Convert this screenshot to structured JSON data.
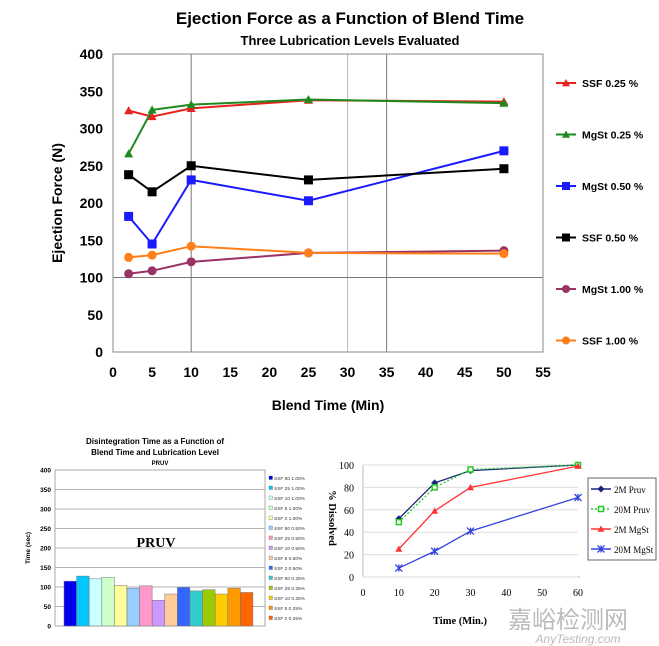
{
  "chart_data": [
    {
      "type": "line",
      "title": "Ejection Force as a Function of Blend Time",
      "subtitle": "Three Lubrication Levels Evaluated",
      "xlabel": "Blend Time (Min)",
      "ylabel": "Ejection Force (N)",
      "xlim": [
        0,
        55
      ],
      "ylim": [
        0,
        400
      ],
      "xticks": [
        0,
        5,
        10,
        15,
        20,
        25,
        30,
        35,
        40,
        45,
        50,
        55
      ],
      "yticks": [
        0,
        50,
        100,
        150,
        200,
        250,
        300,
        350,
        400
      ],
      "x": [
        2,
        5,
        10,
        25,
        50
      ],
      "legend": "right",
      "series": [
        {
          "name": "SSF 0.25 %",
          "color": "#e8231f",
          "marker": "triangle",
          "values": [
            324,
            316,
            327,
            338,
            336
          ]
        },
        {
          "name": "MgSt 0.25 %",
          "color": "#1e8a1e",
          "marker": "triangle",
          "values": [
            266,
            325,
            332,
            339,
            334
          ]
        },
        {
          "name": "MgSt 0.50 %",
          "color": "#1a1aff",
          "marker": "square",
          "values": [
            182,
            145,
            231,
            203,
            270
          ]
        },
        {
          "name": "SSF 0.50 %",
          "color": "#000000",
          "marker": "square",
          "values": [
            238,
            215,
            250,
            231,
            246
          ]
        },
        {
          "name": "MgSt 1.00 %",
          "color": "#993366",
          "marker": "circle",
          "values": [
            105,
            109,
            121,
            133,
            136
          ]
        },
        {
          "name": "SSF 1.00 %",
          "color": "#ff7f1a",
          "marker": "circle",
          "values": [
            127,
            130,
            142,
            133,
            132
          ]
        }
      ]
    },
    {
      "type": "bar",
      "title": "Disintegration Time as a Function of",
      "title2": "Blend Time and Lubrication Level",
      "subtitle": "PRUV",
      "annotation": "PRUV",
      "ylabel": "Time (sec)",
      "ylim": [
        0,
        400
      ],
      "yticks": [
        0,
        50,
        100,
        150,
        200,
        250,
        300,
        350,
        400
      ],
      "legend": "right",
      "categories": [
        "SSF 50 1.00%",
        "SSF 25 1.00%",
        "SSF 10 1.00%",
        "SSF 5 1.00%",
        "SSF 2 1.00%",
        "SSF 50 0.50%",
        "SSF 25 0.50%",
        "SSF 10 0.50%",
        "SSF 5 0.50%",
        "SSF 2 0.50%",
        "SSF 50 0.25%",
        "SSF 25 0.25%",
        "SSF 10 0.25%",
        "SSF 5 0.25%",
        "SSF 2 0.25%"
      ],
      "values": [
        115,
        128,
        121,
        125,
        104,
        97,
        103,
        66,
        82,
        99,
        90,
        93,
        82,
        97,
        86
      ],
      "colors": [
        "#0000ee",
        "#00c8ff",
        "#ccffff",
        "#ccffcc",
        "#ffff99",
        "#99ccff",
        "#ff99cc",
        "#cc99ff",
        "#ffcc99",
        "#3366ff",
        "#33cccc",
        "#99cc00",
        "#ffcc00",
        "#ff9900",
        "#ff6600"
      ]
    },
    {
      "type": "line",
      "xlabel": "Time  (Min.)",
      "ylabel": "% Dissolved",
      "xlim": [
        0,
        60
      ],
      "ylim": [
        0,
        100
      ],
      "xticks": [
        0,
        10,
        20,
        30,
        40,
        50,
        60
      ],
      "yticks": [
        0,
        20,
        40,
        60,
        80,
        100
      ],
      "x": [
        10,
        20,
        30,
        60
      ],
      "legend": "right",
      "series": [
        {
          "name": "2M Pruv",
          "color": "#1a237e",
          "marker": "diamond",
          "dash": "",
          "values": [
            52,
            84,
            95,
            100
          ]
        },
        {
          "name": "20M Pruv",
          "color": "#22cc22",
          "marker": "opensquare",
          "dash": "2,2",
          "values": [
            49,
            80,
            96,
            100
          ]
        },
        {
          "name": "2M MgSt",
          "color": "#ff3333",
          "marker": "triangle",
          "dash": "",
          "values": [
            25,
            59,
            80,
            99
          ]
        },
        {
          "name": "20M MgSt",
          "color": "#3344dd",
          "marker": "star",
          "dash": "",
          "values": [
            8,
            23,
            41,
            71
          ]
        }
      ]
    }
  ],
  "watermark": {
    "cn": "嘉峪检测网",
    "en": "AnyTesting.com"
  }
}
